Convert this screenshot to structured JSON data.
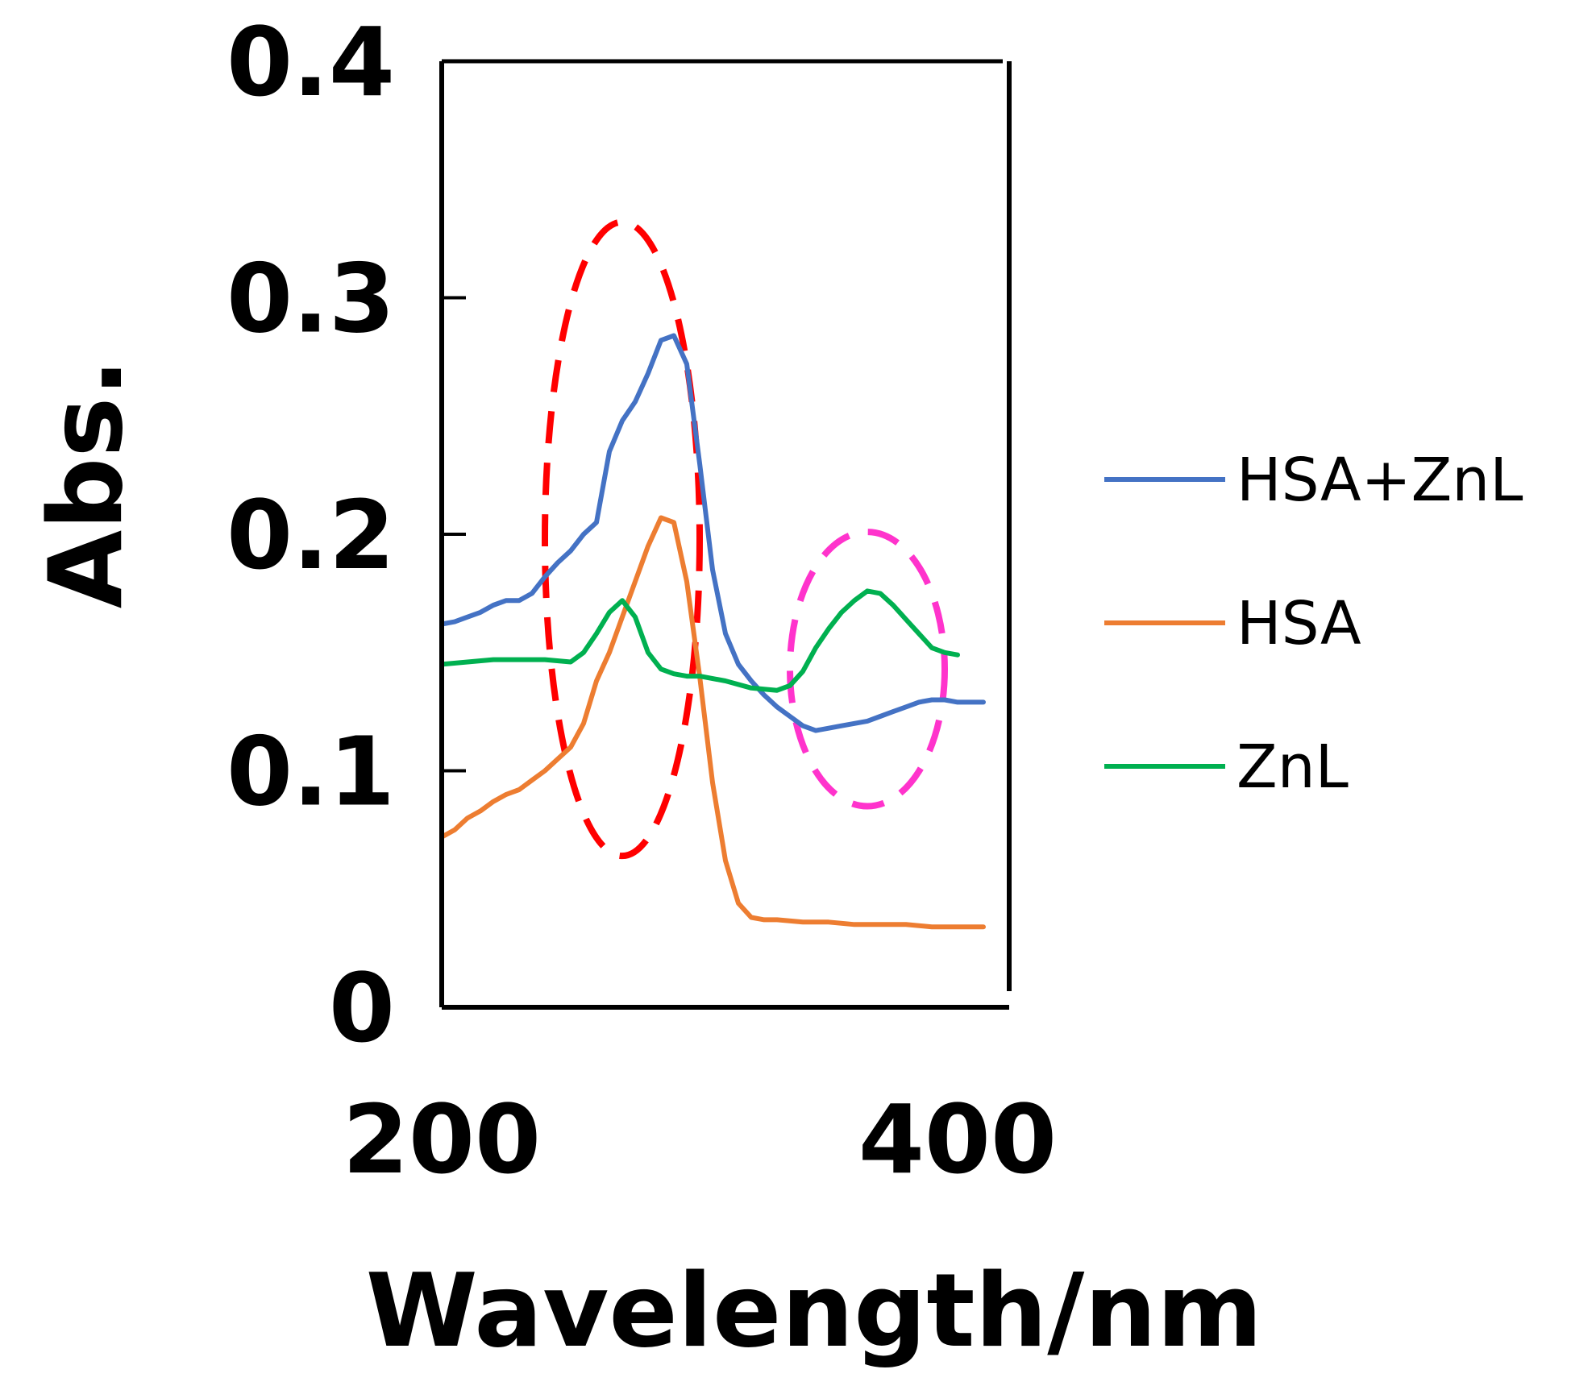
{
  "chart_data": {
    "type": "line",
    "title": "",
    "xlabel": "Wavelength/nm",
    "ylabel": "Abs.",
    "xlim": [
      200,
      420
    ],
    "ylim": [
      0,
      0.4
    ],
    "x_ticks": [
      200,
      400
    ],
    "y_ticks": [
      0,
      0.1,
      0.2,
      0.3,
      0.4
    ],
    "y_tick_labels": [
      "0",
      "0.1",
      "0.2",
      "0.3",
      "0.4"
    ],
    "legend_position": "right",
    "grid": false,
    "series": [
      {
        "name": "HSA+ZnL",
        "color": "#4472C4",
        "x": [
          200,
          205,
          210,
          215,
          220,
          225,
          230,
          235,
          240,
          245,
          250,
          255,
          260,
          265,
          270,
          275,
          280,
          285,
          290,
          295,
          300,
          305,
          310,
          315,
          320,
          325,
          330,
          335,
          340,
          345,
          350,
          355,
          360,
          365,
          370,
          375,
          380,
          385,
          390,
          395,
          400,
          410
        ],
        "y": [
          0.162,
          0.163,
          0.165,
          0.167,
          0.17,
          0.172,
          0.172,
          0.175,
          0.182,
          0.188,
          0.193,
          0.2,
          0.205,
          0.235,
          0.248,
          0.256,
          0.268,
          0.282,
          0.284,
          0.272,
          0.23,
          0.185,
          0.158,
          0.145,
          0.138,
          0.132,
          0.127,
          0.123,
          0.119,
          0.117,
          0.118,
          0.119,
          0.12,
          0.121,
          0.123,
          0.125,
          0.127,
          0.129,
          0.13,
          0.13,
          0.129,
          0.129
        ]
      },
      {
        "name": "HSA",
        "color": "#ED7D31",
        "x": [
          200,
          205,
          210,
          215,
          220,
          225,
          230,
          235,
          240,
          245,
          250,
          255,
          260,
          265,
          270,
          275,
          280,
          285,
          290,
          295,
          300,
          305,
          310,
          315,
          320,
          325,
          330,
          340,
          350,
          360,
          370,
          380,
          390,
          400,
          410
        ],
        "y": [
          0.072,
          0.075,
          0.08,
          0.083,
          0.087,
          0.09,
          0.092,
          0.096,
          0.1,
          0.105,
          0.11,
          0.12,
          0.138,
          0.15,
          0.165,
          0.18,
          0.195,
          0.207,
          0.205,
          0.18,
          0.14,
          0.095,
          0.062,
          0.044,
          0.038,
          0.037,
          0.037,
          0.036,
          0.036,
          0.035,
          0.035,
          0.035,
          0.034,
          0.034,
          0.034
        ]
      },
      {
        "name": "ZnL",
        "color": "#00B050",
        "x": [
          200,
          210,
          220,
          230,
          240,
          250,
          255,
          260,
          265,
          270,
          275,
          280,
          285,
          290,
          295,
          300,
          310,
          320,
          330,
          335,
          340,
          345,
          350,
          355,
          360,
          365,
          370,
          375,
          380,
          385,
          390,
          395,
          400
        ],
        "y": [
          0.145,
          0.146,
          0.147,
          0.147,
          0.147,
          0.146,
          0.15,
          0.158,
          0.167,
          0.172,
          0.165,
          0.15,
          0.143,
          0.141,
          0.14,
          0.14,
          0.138,
          0.135,
          0.134,
          0.136,
          0.142,
          0.152,
          0.16,
          0.167,
          0.172,
          0.176,
          0.175,
          0.17,
          0.164,
          0.158,
          0.152,
          0.15,
          0.149
        ]
      }
    ],
    "annotations": [
      {
        "type": "dashed-ellipse",
        "color": "#FF0000",
        "center_x": 270,
        "center_y": 0.198,
        "radius_x": 30,
        "radius_y": 0.134
      },
      {
        "type": "dashed-ellipse",
        "color": "#FF33CC",
        "center_x": 365,
        "center_y": 0.143,
        "radius_x": 30,
        "radius_y": 0.058
      }
    ]
  }
}
